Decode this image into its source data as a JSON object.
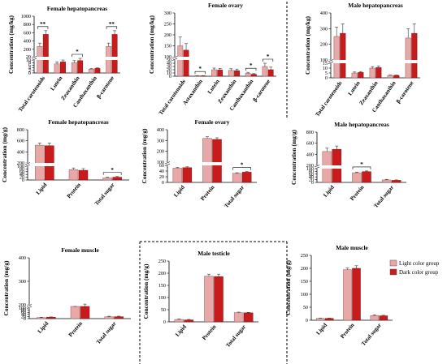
{
  "legend": {
    "items": [
      {
        "label": "Light color group",
        "color": "#e8a8a8"
      },
      {
        "label": "Dark color group",
        "color": "#c81c1c"
      }
    ]
  },
  "colors": {
    "light": "#e8a8a8",
    "dark": "#c81c1c",
    "darkEdge": "#7a1010",
    "lightEdge": "#8a5a5a"
  },
  "chart_data": [
    {
      "type": "bar",
      "title": "Female hepatopancreas",
      "ylabel": "Concentration (mg/kg)",
      "categories": [
        "Total carotenoids",
        "Lutein",
        "Zeaxanthin",
        "Canthaxanthin",
        "β-carotene"
      ],
      "series": [
        {
          "name": "Light color group",
          "values": [
            270,
            7,
            8,
            3,
            270
          ]
        },
        {
          "name": "Dark color group",
          "values": [
            560,
            8.5,
            9.5,
            3.5,
            560
          ]
        }
      ],
      "errors": [
        [
          80,
          1.5,
          1.5,
          0.4,
          80
        ],
        [
          90,
          1.5,
          1.5,
          0.4,
          90
        ]
      ],
      "scale": "broken",
      "yticks": [
        0,
        2,
        4,
        6,
        8,
        10,
        20,
        200,
        400,
        600,
        800,
        1000
      ],
      "significance": [
        {
          "category": 0,
          "label": "**"
        },
        {
          "category": 2,
          "label": "*"
        },
        {
          "category": 4,
          "label": "**"
        }
      ]
    },
    {
      "type": "bar",
      "title": "Female ovary",
      "ylabel": "Concentration (mg/kg)",
      "categories": [
        "Total carotenoids",
        "Astaxanthin",
        "Lutein",
        "Zeaxanthin",
        "Canthaxanthin",
        "β-carotene"
      ],
      "series": [
        {
          "name": "Light color group",
          "values": [
            150,
            1.5,
            20,
            18,
            9,
            30
          ]
        },
        {
          "name": "Dark color group",
          "values": [
            130,
            1,
            19,
            17,
            6,
            20
          ]
        }
      ],
      "errors": [
        [
          40,
          0.5,
          5,
          5,
          3,
          10
        ],
        [
          30,
          0.5,
          5,
          5,
          2,
          8
        ]
      ],
      "scale": "broken",
      "yticks": [
        0,
        10,
        20,
        30,
        40,
        50,
        100,
        150,
        200,
        250,
        300
      ],
      "significance": [
        {
          "category": 1,
          "label": "*"
        },
        {
          "category": 4,
          "label": "*"
        },
        {
          "category": 5,
          "label": "*"
        }
      ]
    },
    {
      "type": "bar",
      "title": "Male hepatopancreas",
      "ylabel": "Concentration (mg/kg)",
      "categories": [
        "Total carotenoids",
        "Lutein",
        "Zeaxanthin",
        "Canthaxanthin",
        "β-carotene"
      ],
      "series": [
        {
          "name": "Light color group",
          "values": [
            250,
            5,
            10,
            2.5,
            240
          ]
        },
        {
          "name": "Dark color group",
          "values": [
            270,
            5.5,
            10.5,
            2.5,
            270
          ]
        }
      ],
      "errors": [
        [
          60,
          1,
          1.5,
          0.3,
          60
        ],
        [
          60,
          1,
          1.5,
          0.3,
          60
        ]
      ],
      "scale": "broken",
      "yticks": [
        0,
        5,
        10,
        15,
        100,
        200,
        300,
        400
      ],
      "significance": []
    },
    {
      "type": "bar",
      "title": "Female hepatopancreas",
      "ylabel": "Concentration (mg/g)",
      "categories": [
        "Lipid",
        "Protein",
        "Total sugar"
      ],
      "series": [
        {
          "name": "Light color group",
          "values": [
            520,
            75,
            15
          ]
        },
        {
          "name": "Dark color group",
          "values": [
            510,
            70,
            20
          ]
        }
      ],
      "errors": [
        [
          40,
          12,
          5
        ],
        [
          50,
          12,
          5
        ]
      ],
      "scale": "broken",
      "yticks": [
        0,
        20,
        40,
        60,
        80,
        100,
        200,
        400,
        600,
        800
      ],
      "significance": [
        {
          "category": 2,
          "label": "*"
        }
      ]
    },
    {
      "type": "bar",
      "title": "Female ovary",
      "ylabel": "Concentration (mg/g)",
      "categories": [
        "Lipid",
        "Protein",
        "Total sugar"
      ],
      "series": [
        {
          "name": "Light color group",
          "values": [
            50,
            320,
            32
          ]
        },
        {
          "name": "Dark color group",
          "values": [
            52,
            310,
            36
          ]
        }
      ],
      "errors": [
        [
          3,
          15,
          2
        ],
        [
          3,
          15,
          2
        ]
      ],
      "scale": "broken",
      "yticks": [
        0,
        20,
        40,
        60,
        100,
        200,
        300,
        400
      ],
      "significance": [
        {
          "category": 2,
          "label": "*"
        }
      ]
    },
    {
      "type": "bar",
      "title": "Male hepatopancreas",
      "ylabel": "Concentration (mg/g)",
      "categories": [
        "Lipid",
        "Protein",
        "Total sugar"
      ],
      "series": [
        {
          "name": "Light color group",
          "values": [
            450,
            70,
            18
          ]
        },
        {
          "name": "Dark color group",
          "values": [
            490,
            78,
            15
          ]
        }
      ],
      "errors": [
        [
          60,
          5,
          4
        ],
        [
          60,
          5,
          3
        ]
      ],
      "scale": "broken",
      "yticks": [
        0,
        20,
        40,
        60,
        80,
        100,
        200,
        400,
        600,
        800
      ],
      "significance": [
        {
          "category": 1,
          "label": "*"
        }
      ]
    },
    {
      "type": "bar",
      "title": "Female muscle",
      "ylabel": "Concentration (mg/g)",
      "categories": [
        "Lipid",
        "Protein",
        "Total sugar"
      ],
      "series": [
        {
          "name": "Light color group",
          "values": [
            10,
            180,
            17
          ]
        },
        {
          "name": "Dark color group",
          "values": [
            13,
            195,
            18
          ]
        }
      ],
      "errors": [
        [
          3,
          8,
          5
        ],
        [
          3,
          8,
          5
        ]
      ],
      "scale": "broken",
      "yticks": [
        0,
        20,
        40,
        60,
        80,
        100,
        200,
        300,
        400
      ],
      "significance": []
    },
    {
      "type": "bar",
      "title": "Male testicle",
      "ylabel": "Concentration (mg/g)",
      "categories": [
        "Lipid",
        "Protein",
        "Total sugar"
      ],
      "series": [
        {
          "name": "Light color group",
          "values": [
            10,
            188,
            38
          ]
        },
        {
          "name": "Dark color group",
          "values": [
            8,
            186,
            37
          ]
        }
      ],
      "errors": [
        [
          2,
          8,
          2
        ],
        [
          2,
          10,
          2
        ]
      ],
      "scale": "linear",
      "ylim": [
        0,
        250
      ],
      "yticks": [
        0,
        50,
        100,
        150,
        200,
        250
      ],
      "significance": []
    },
    {
      "type": "bar",
      "title": "Male muscle",
      "ylabel": "Concentration (mg/g)",
      "categories": [
        "Lipid",
        "Protein",
        "Total sugar"
      ],
      "series": [
        {
          "name": "Light color group",
          "values": [
            7,
            195,
            18
          ]
        },
        {
          "name": "Dark color group",
          "values": [
            7,
            200,
            17
          ]
        }
      ],
      "errors": [
        [
          1,
          6,
          3
        ],
        [
          1,
          10,
          2
        ]
      ],
      "scale": "linear",
      "ylim": [
        0,
        250
      ],
      "yticks": [
        0,
        50,
        100,
        150,
        200,
        250
      ],
      "significance": []
    }
  ]
}
